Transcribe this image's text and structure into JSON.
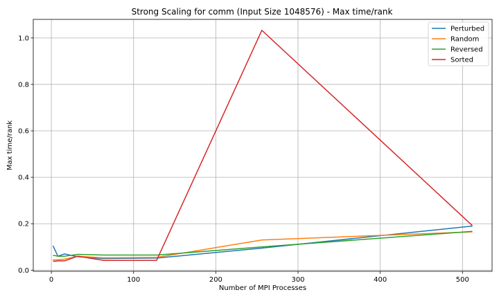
{
  "chart_data": {
    "type": "line",
    "title": "Strong Scaling for comm (Input Size 1048576) - Max time/rank",
    "xlabel": "Number of MPI Processes",
    "ylabel": "Max time/rank",
    "xlim": [
      -22,
      536
    ],
    "ylim": [
      -0.005,
      1.08
    ],
    "xticks": [
      0,
      100,
      200,
      300,
      400,
      500
    ],
    "yticks": [
      0.0,
      0.2,
      0.4,
      0.6,
      0.8,
      1.0
    ],
    "ytick_labels": [
      "0.0",
      "0.2",
      "0.4",
      "0.6",
      "0.8",
      "1.0"
    ],
    "grid": true,
    "legend_position": "top-right",
    "x": [
      2,
      4,
      8,
      16,
      32,
      64,
      128,
      256,
      512
    ],
    "series": [
      {
        "name": "Perturbed",
        "color": "#1f77b4",
        "values": [
          0.105,
          0.09,
          0.06,
          0.07,
          0.058,
          0.05,
          0.052,
          0.095,
          0.19
        ]
      },
      {
        "name": "Random",
        "color": "#ff7f0e",
        "values": [
          0.045,
          0.044,
          0.045,
          0.047,
          0.06,
          0.053,
          0.055,
          0.13,
          0.165
        ]
      },
      {
        "name": "Reversed",
        "color": "#2ca02c",
        "values": [
          0.063,
          0.063,
          0.06,
          0.06,
          0.068,
          0.065,
          0.065,
          0.1,
          0.167
        ]
      },
      {
        "name": "Sorted",
        "color": "#d62728",
        "values": [
          0.04,
          0.038,
          0.04,
          0.04,
          0.06,
          0.042,
          0.042,
          1.033,
          0.192
        ]
      }
    ]
  }
}
